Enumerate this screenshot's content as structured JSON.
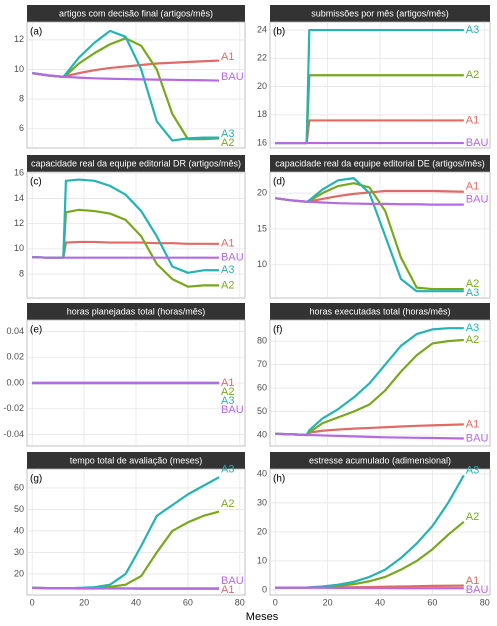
{
  "xlabel": "Meses",
  "chart_data": [
    {
      "type": "line",
      "title": "artigos com decisão final (artigos/mês)",
      "tag": "(a)",
      "x": [
        0,
        6,
        12,
        13,
        18,
        24,
        30,
        36,
        42,
        48,
        54,
        60,
        66,
        72
      ],
      "xlim": [
        -2,
        82
      ],
      "xticks": [
        0,
        20,
        40,
        60,
        80
      ],
      "ylim": [
        4.7,
        13.2
      ],
      "yticks": [
        6,
        8,
        10,
        12
      ],
      "grid": true,
      "series": [
        {
          "name": "A1",
          "color": "#e16a64",
          "values": [
            9.75,
            9.6,
            9.5,
            9.55,
            9.75,
            9.95,
            10.1,
            10.2,
            10.3,
            10.4,
            10.45,
            10.5,
            10.55,
            10.6
          ]
        },
        {
          "name": "A2",
          "color": "#79a81f",
          "values": [
            9.75,
            9.6,
            9.5,
            9.6,
            10.4,
            11.1,
            11.7,
            12.1,
            11.6,
            10,
            7,
            5.3,
            5.3,
            5.35
          ]
        },
        {
          "name": "A3",
          "color": "#25b3b5",
          "values": [
            9.75,
            9.6,
            9.5,
            9.7,
            10.8,
            11.8,
            12.6,
            12.2,
            10,
            6.5,
            5.2,
            5.35,
            5.4,
            5.4
          ]
        },
        {
          "name": "BAU",
          "color": "#b56be0",
          "values": [
            9.75,
            9.6,
            9.5,
            9.5,
            9.45,
            9.4,
            9.37,
            9.35,
            9.33,
            9.31,
            9.3,
            9.28,
            9.27,
            9.25
          ]
        }
      ]
    },
    {
      "type": "line",
      "title": "submissões por mês (artigos/mês)",
      "tag": "(b)",
      "x": [
        0,
        6,
        12,
        13,
        18,
        24,
        30,
        36,
        42,
        48,
        54,
        60,
        66,
        72
      ],
      "xlim": [
        -2,
        82
      ],
      "xticks": [
        0,
        20,
        40,
        60,
        80
      ],
      "ylim": [
        15.65,
        24.57
      ],
      "yticks": [
        16,
        18,
        20,
        22,
        24
      ],
      "grid": true,
      "series": [
        {
          "name": "A1",
          "color": "#e16a64",
          "values": [
            16,
            16,
            16,
            17.6,
            17.6,
            17.6,
            17.6,
            17.6,
            17.6,
            17.6,
            17.6,
            17.6,
            17.6,
            17.6
          ]
        },
        {
          "name": "A2",
          "color": "#79a81f",
          "values": [
            16,
            16,
            16,
            20.8,
            20.8,
            20.8,
            20.8,
            20.8,
            20.8,
            20.8,
            20.8,
            20.8,
            20.8,
            20.8
          ]
        },
        {
          "name": "A3",
          "color": "#25b3b5",
          "values": [
            16,
            16,
            16,
            24,
            24,
            24,
            24,
            24,
            24,
            24,
            24,
            24,
            24,
            24
          ]
        },
        {
          "name": "BAU",
          "color": "#b56be0",
          "values": [
            16,
            16,
            16,
            16,
            16,
            16,
            16,
            16,
            16,
            16,
            16,
            16,
            16,
            16
          ]
        }
      ]
    },
    {
      "type": "line",
      "title": "capacidade real da equipe editorial DR (artigos/mês)",
      "tag": "(c)",
      "x": [
        0,
        6,
        12,
        13,
        18,
        24,
        30,
        36,
        42,
        48,
        54,
        60,
        66,
        72
      ],
      "xlim": [
        -2,
        82
      ],
      "xticks": [
        0,
        20,
        40,
        60,
        80
      ],
      "ylim": [
        6.1,
        16.1
      ],
      "yticks": [
        8,
        10,
        12,
        14,
        16
      ],
      "grid": true,
      "series": [
        {
          "name": "A1",
          "color": "#e16a64",
          "values": [
            9.35,
            9.3,
            9.3,
            10.5,
            10.55,
            10.55,
            10.5,
            10.5,
            10.5,
            10.45,
            10.45,
            10.4,
            10.4,
            10.4
          ]
        },
        {
          "name": "A2",
          "color": "#79a81f",
          "values": [
            9.35,
            9.3,
            9.3,
            12.9,
            13.1,
            13,
            12.8,
            12.3,
            11,
            8.8,
            7.6,
            7,
            7.1,
            7.1
          ]
        },
        {
          "name": "A3",
          "color": "#25b3b5",
          "values": [
            9.35,
            9.3,
            9.3,
            15.4,
            15.5,
            15.4,
            15,
            14.3,
            13,
            11,
            8.6,
            8.1,
            8.3,
            8.3
          ]
        },
        {
          "name": "BAU",
          "color": "#b56be0",
          "values": [
            9.35,
            9.3,
            9.3,
            9.3,
            9.3,
            9.3,
            9.3,
            9.3,
            9.3,
            9.3,
            9.3,
            9.3,
            9.3,
            9.3
          ]
        }
      ]
    },
    {
      "type": "line",
      "title": "capacidade real da equipe editorial DE (artigos/mês)",
      "tag": "(d)",
      "x": [
        0,
        6,
        12,
        13,
        18,
        24,
        30,
        36,
        42,
        48,
        54,
        60,
        66,
        72
      ],
      "xlim": [
        -2,
        82
      ],
      "xticks": [
        0,
        20,
        40,
        60,
        80
      ],
      "ylim": [
        5.35,
        22.96
      ],
      "yticks": [
        10,
        15,
        20
      ],
      "grid": true,
      "series": [
        {
          "name": "A1",
          "color": "#e16a64",
          "values": [
            19.3,
            19,
            18.8,
            18.85,
            19.2,
            19.6,
            19.9,
            20.1,
            20.3,
            20.3,
            20.3,
            20.3,
            20.25,
            20.2
          ]
        },
        {
          "name": "A2",
          "color": "#79a81f",
          "values": [
            19.3,
            19,
            18.8,
            18.9,
            20,
            21,
            21.4,
            20.8,
            17.5,
            11,
            6.8,
            6.6,
            6.6,
            6.6
          ]
        },
        {
          "name": "A3",
          "color": "#25b3b5",
          "values": [
            19.3,
            19,
            18.8,
            19,
            20.5,
            21.8,
            22.1,
            20,
            14,
            8,
            6.3,
            6.3,
            6.3,
            6.3
          ]
        },
        {
          "name": "BAU",
          "color": "#b56be0",
          "values": [
            19.3,
            19,
            18.8,
            18.8,
            18.7,
            18.6,
            18.55,
            18.5,
            18.5,
            18.45,
            18.45,
            18.4,
            18.4,
            18.4
          ]
        }
      ]
    },
    {
      "type": "line",
      "title": "horas planejadas total (horas/mês)",
      "tag": "(e)",
      "x": [
        0,
        6,
        12,
        13,
        18,
        24,
        30,
        36,
        42,
        48,
        54,
        60,
        66,
        72
      ],
      "xlim": [
        -2,
        82
      ],
      "xticks": [
        0,
        20,
        40,
        60,
        80
      ],
      "ylim": [
        -0.049,
        0.049
      ],
      "yticks": [
        -0.04,
        -0.02,
        {
          "value": 0,
          "label": "0.00"
        },
        0.02,
        0.04
      ],
      "grid": true,
      "series": [
        {
          "name": "A1",
          "color": "#e16a64",
          "values": [
            0,
            0,
            0,
            0,
            0,
            0,
            0,
            0,
            0,
            0,
            0,
            0,
            0,
            0
          ]
        },
        {
          "name": "A2",
          "color": "#79a81f",
          "values": [
            0,
            0,
            0,
            0,
            0,
            0,
            0,
            0,
            0,
            0,
            0,
            0,
            0,
            0
          ]
        },
        {
          "name": "A3",
          "color": "#25b3b5",
          "values": [
            0,
            0,
            0,
            0,
            0,
            0,
            0,
            0,
            0,
            0,
            0,
            0,
            0,
            0
          ]
        },
        {
          "name": "BAU",
          "color": "#b56be0",
          "values": [
            0,
            0,
            0,
            0,
            0,
            0,
            0,
            0,
            0,
            0,
            0,
            0,
            0,
            0
          ]
        }
      ]
    },
    {
      "type": "line",
      "title": "horas executadas total (horas/mês)",
      "tag": "(f)",
      "x": [
        0,
        6,
        12,
        13,
        18,
        24,
        30,
        36,
        42,
        48,
        54,
        60,
        66,
        72
      ],
      "xlim": [
        -2,
        82
      ],
      "xticks": [
        0,
        20,
        40,
        60,
        80
      ],
      "ylim": [
        35.3,
        89
      ],
      "yticks": [
        40,
        50,
        60,
        70,
        80
      ],
      "grid": true,
      "series": [
        {
          "name": "A1",
          "color": "#e16a64",
          "values": [
            40.5,
            40.3,
            40,
            41,
            41.8,
            42.3,
            42.7,
            43,
            43.3,
            43.6,
            43.9,
            44.1,
            44.3,
            44.5
          ]
        },
        {
          "name": "A2",
          "color": "#79a81f",
          "values": [
            40.5,
            40.3,
            40,
            41,
            45,
            47.5,
            50,
            53,
            59,
            67,
            74,
            79,
            80,
            80.5
          ]
        },
        {
          "name": "A3",
          "color": "#25b3b5",
          "values": [
            40.5,
            40.3,
            40,
            42,
            47,
            51,
            56,
            62,
            70,
            78,
            83,
            85,
            85.5,
            85.5
          ]
        },
        {
          "name": "BAU",
          "color": "#b56be0",
          "values": [
            40.5,
            40.3,
            40,
            40,
            39.8,
            39.6,
            39.4,
            39.2,
            39,
            38.9,
            38.8,
            38.7,
            38.6,
            38.5
          ]
        }
      ]
    },
    {
      "type": "line",
      "title": "tempo total de avaliação (meses)",
      "tag": "(g)",
      "x": [
        0,
        6,
        12,
        13,
        18,
        24,
        30,
        36,
        42,
        48,
        54,
        60,
        66,
        72
      ],
      "xlim": [
        -2,
        82
      ],
      "xticks": [
        0,
        20,
        40,
        60,
        80
      ],
      "ylim": [
        10.2,
        68.8
      ],
      "yticks": [
        20,
        30,
        40,
        50,
        60
      ],
      "grid": true,
      "series": [
        {
          "name": "A1",
          "color": "#e16a64",
          "values": [
            13.5,
            13.4,
            13.3,
            13.3,
            13.2,
            13.2,
            13.2,
            13.2,
            13.1,
            13.1,
            13.1,
            13.1,
            13.1,
            13.1
          ]
        },
        {
          "name": "A2",
          "color": "#79a81f",
          "values": [
            13.5,
            13.4,
            13.3,
            13.3,
            13.3,
            13.5,
            14,
            15,
            19,
            30,
            40,
            44,
            47,
            49
          ]
        },
        {
          "name": "A3",
          "color": "#25b3b5",
          "values": [
            13.5,
            13.4,
            13.3,
            13.3,
            13.5,
            13.8,
            15,
            20,
            33,
            47,
            52,
            57,
            61,
            65
          ]
        },
        {
          "name": "BAU",
          "color": "#b56be0",
          "values": [
            13.5,
            13.4,
            13.4,
            13.4,
            13.4,
            13.4,
            13.4,
            13.3,
            13.3,
            13.3,
            13.3,
            13.3,
            13.3,
            13.3
          ]
        }
      ]
    },
    {
      "type": "line",
      "title": "estresse acumulado (adimensional)",
      "tag": "(h)",
      "x": [
        0,
        6,
        12,
        13,
        18,
        24,
        30,
        36,
        42,
        48,
        54,
        60,
        66,
        72
      ],
      "xlim": [
        -2,
        82
      ],
      "xticks": [
        0,
        20,
        40,
        60,
        80
      ],
      "ylim": [
        -1.74,
        41.7
      ],
      "yticks": [
        0,
        10,
        20,
        30,
        40
      ],
      "grid": true,
      "series": [
        {
          "name": "A1",
          "color": "#e16a64",
          "values": [
            0.8,
            0.8,
            0.8,
            0.8,
            0.85,
            0.9,
            0.95,
            1,
            1.1,
            1.2,
            1.3,
            1.4,
            1.45,
            1.5
          ]
        },
        {
          "name": "A2",
          "color": "#79a81f",
          "values": [
            0.8,
            0.8,
            0.8,
            0.85,
            1,
            1.4,
            2,
            3,
            4.5,
            7,
            10,
            14,
            19,
            23.5
          ]
        },
        {
          "name": "A3",
          "color": "#25b3b5",
          "values": [
            0.8,
            0.8,
            0.8,
            0.9,
            1.2,
            1.8,
            2.8,
            4.5,
            7,
            11,
            16,
            22,
            30,
            39.5
          ]
        },
        {
          "name": "BAU",
          "color": "#b56be0",
          "values": [
            0.8,
            0.8,
            0.8,
            0.8,
            0.75,
            0.7,
            0.7,
            0.65,
            0.65,
            0.6,
            0.6,
            0.6,
            0.6,
            0.6
          ]
        }
      ]
    }
  ]
}
